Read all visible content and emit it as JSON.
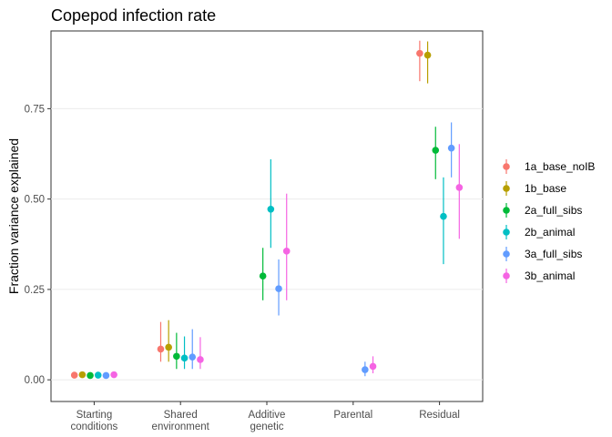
{
  "chart_data": {
    "type": "scatter",
    "title": "Copepod infection rate",
    "xlabel": "",
    "ylabel": "Fraction variance explained",
    "ylim": [
      -0.06,
      0.965
    ],
    "yticks": [
      0.0,
      0.25,
      0.5,
      0.75
    ],
    "ytick_labels": [
      "0.00",
      "0.25",
      "0.50",
      "0.75"
    ],
    "grid": true,
    "legend_position": "right",
    "categories": [
      [
        "Starting",
        "conditions"
      ],
      [
        "Shared",
        "environment"
      ],
      [
        "Additive",
        "genetic"
      ],
      [
        "Parental"
      ],
      [
        "Residual"
      ]
    ],
    "series": [
      {
        "name": "1a_base_noIB",
        "color": "#F8766D",
        "values": [
          0.013,
          0.085,
          null,
          null,
          0.903
        ],
        "lower": [
          0.006,
          0.05,
          null,
          null,
          0.826
        ],
        "upper": [
          0.021,
          0.16,
          null,
          null,
          0.938
        ]
      },
      {
        "name": "1b_base",
        "color": "#B79F00",
        "values": [
          0.014,
          0.09,
          null,
          null,
          0.898
        ],
        "lower": [
          0.007,
          0.05,
          null,
          null,
          0.82
        ],
        "upper": [
          0.022,
          0.165,
          null,
          null,
          0.936
        ]
      },
      {
        "name": "2a_full_sibs",
        "color": "#00BA38",
        "values": [
          0.012,
          0.065,
          0.287,
          null,
          0.635
        ],
        "lower": [
          0.006,
          0.03,
          0.22,
          null,
          0.555
        ],
        "upper": [
          0.02,
          0.13,
          0.365,
          null,
          0.7
        ]
      },
      {
        "name": "2b_animal",
        "color": "#00BFC4",
        "values": [
          0.013,
          0.06,
          0.472,
          null,
          0.452
        ],
        "lower": [
          0.006,
          0.03,
          0.365,
          null,
          0.32
        ],
        "upper": [
          0.022,
          0.12,
          0.61,
          null,
          0.56
        ]
      },
      {
        "name": "3a_full_sibs",
        "color": "#619CFF",
        "values": [
          0.012,
          0.063,
          0.252,
          0.028,
          0.641
        ],
        "lower": [
          0.006,
          0.03,
          0.178,
          0.01,
          0.56
        ],
        "upper": [
          0.02,
          0.14,
          0.333,
          0.05,
          0.712
        ]
      },
      {
        "name": "3b_animal",
        "color": "#F564E3",
        "values": [
          0.014,
          0.056,
          0.356,
          0.037,
          0.532
        ],
        "lower": [
          0.007,
          0.03,
          0.22,
          0.018,
          0.39
        ],
        "upper": [
          0.022,
          0.118,
          0.515,
          0.065,
          0.652
        ]
      }
    ]
  }
}
